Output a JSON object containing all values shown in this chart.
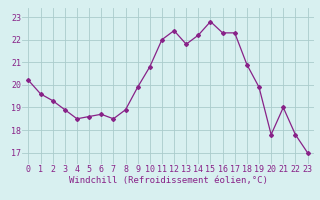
{
  "x": [
    0,
    1,
    2,
    3,
    4,
    5,
    6,
    7,
    8,
    9,
    10,
    11,
    12,
    13,
    14,
    15,
    16,
    17,
    18,
    19,
    20,
    21,
    22,
    23
  ],
  "y": [
    20.2,
    19.6,
    19.3,
    18.9,
    18.5,
    18.6,
    18.7,
    18.5,
    18.9,
    19.9,
    20.8,
    22.0,
    22.4,
    21.8,
    22.2,
    22.8,
    22.3,
    22.3,
    20.9,
    19.9,
    17.8,
    19.0,
    17.8,
    17.0
  ],
  "line_color": "#882288",
  "marker": "D",
  "marker_size": 2.0,
  "bg_color": "#d8f0f0",
  "grid_color": "#aacccc",
  "xlabel": "Windchill (Refroidissement éolien,°C)",
  "xlabel_fontsize": 6.5,
  "tick_fontsize": 6.0,
  "yticks": [
    17,
    18,
    19,
    20,
    21,
    22,
    23
  ],
  "xticks": [
    0,
    1,
    2,
    3,
    4,
    5,
    6,
    7,
    8,
    9,
    10,
    11,
    12,
    13,
    14,
    15,
    16,
    17,
    18,
    19,
    20,
    21,
    22,
    23
  ],
  "ylim": [
    16.5,
    23.4
  ],
  "xlim": [
    -0.5,
    23.5
  ]
}
